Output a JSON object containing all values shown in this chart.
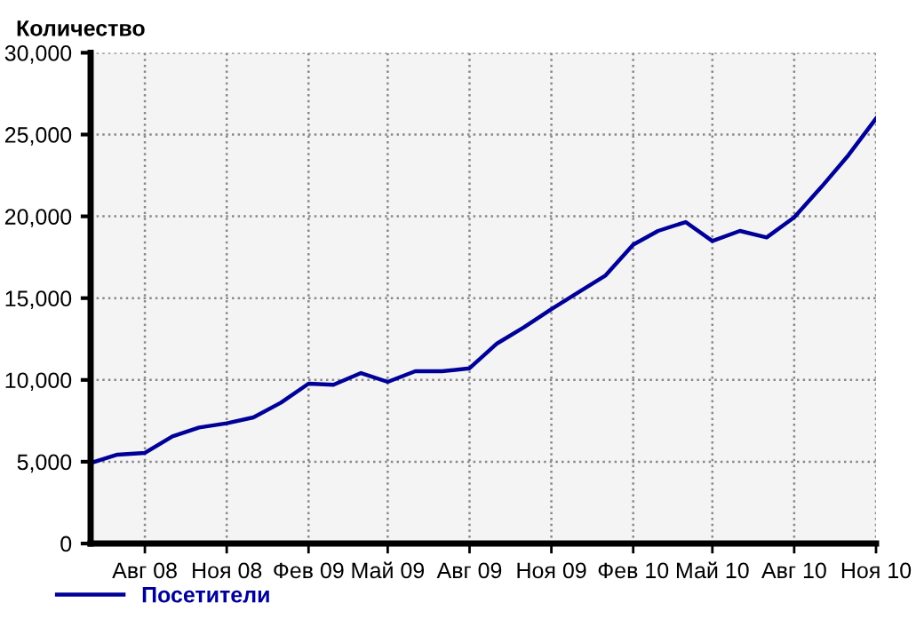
{
  "chart_data": {
    "type": "line",
    "ylabel": "Количество",
    "x": [
      "2008-06",
      "2008-07",
      "2008-08",
      "2008-09",
      "2008-10",
      "2008-11",
      "2008-12",
      "2009-01",
      "2009-02",
      "2009-03",
      "2009-04",
      "2009-05",
      "2009-06",
      "2009-07",
      "2009-08",
      "2009-09",
      "2009-10",
      "2009-11",
      "2009-12",
      "2010-01",
      "2010-02",
      "2010-03",
      "2010-04",
      "2010-05",
      "2010-06",
      "2010-07",
      "2010-08",
      "2010-09",
      "2010-10",
      "2010-11"
    ],
    "series": [
      {
        "name": "Посетители",
        "color": "#000099",
        "values": [
          4920,
          5430,
          5540,
          6550,
          7090,
          7350,
          7710,
          8610,
          9770,
          9700,
          10420,
          9880,
          10530,
          10530,
          10710,
          12230,
          13210,
          14330,
          15340,
          16390,
          18270,
          19110,
          19650,
          18490,
          19110,
          18710,
          19940,
          21820,
          23740,
          25980
        ]
      }
    ],
    "xlim": [
      "2008-06",
      "2010-11"
    ],
    "xticks": [
      {
        "value": "2008-08",
        "label": "Авг 08"
      },
      {
        "value": "2008-11",
        "label": "Ноя 08"
      },
      {
        "value": "2009-02",
        "label": "Фев 09"
      },
      {
        "value": "2009-05",
        "label": "Май 09"
      },
      {
        "value": "2009-08",
        "label": "Авг 09"
      },
      {
        "value": "2009-11",
        "label": "Ноя 09"
      },
      {
        "value": "2010-02",
        "label": "Фев 10"
      },
      {
        "value": "2010-05",
        "label": "Май 10"
      },
      {
        "value": "2010-08",
        "label": "Авг 10"
      },
      {
        "value": "2010-11",
        "label": "Ноя 10"
      }
    ],
    "ylim": [
      0,
      30000
    ],
    "yticks": [
      0,
      {
        "value": 5000,
        "label": "5,000"
      },
      {
        "value": 10000,
        "label": "10,000"
      },
      {
        "value": 15000,
        "label": "15,000"
      },
      {
        "value": 20000,
        "label": "20,000"
      },
      {
        "value": 25000,
        "label": "25,000"
      },
      {
        "value": 30000,
        "label": "30,000"
      }
    ],
    "grid": true,
    "legend": "bottom left",
    "marker": "none",
    "line_style": "solid"
  }
}
